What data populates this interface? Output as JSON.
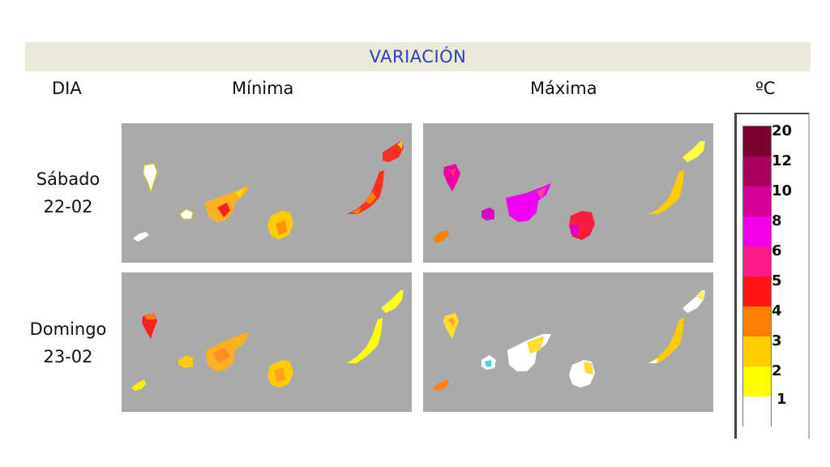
{
  "title": "VARIACIÓN",
  "headers": {
    "day": "DIA",
    "min": "Mínima",
    "max": "Máxima",
    "unit": "ºC"
  },
  "rows": [
    {
      "day": "Sábado",
      "date": "22-02"
    },
    {
      "day": "Domingo",
      "date": "23-02"
    }
  ],
  "legend": {
    "levels": [
      {
        "label": "20",
        "color": "#7a0030"
      },
      {
        "label": "12",
        "color": "#a8005c"
      },
      {
        "label": "10",
        "color": "#d4009a"
      },
      {
        "label": "8",
        "color": "#f000e8"
      },
      {
        "label": "6",
        "color": "#ff1a8c"
      },
      {
        "label": "5",
        "color": "#ff1414"
      },
      {
        "label": "4",
        "color": "#ff8000"
      },
      {
        "label": "3",
        "color": "#ffcc00"
      },
      {
        "label": "2",
        "color": "#ffff00"
      },
      {
        "label": "1",
        "color": "#ffffff"
      }
    ]
  },
  "map_colors": {
    "sea": "#aaaaaa",
    "white": "#ffffff",
    "cyan": "#33dddd"
  }
}
